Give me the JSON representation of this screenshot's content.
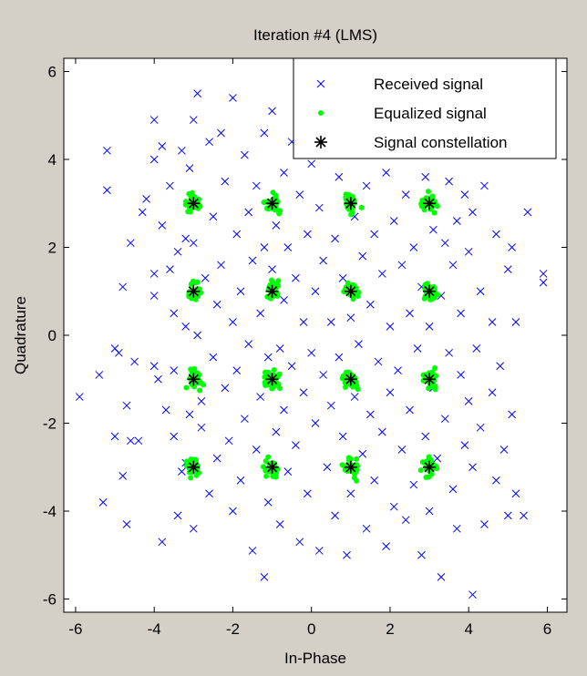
{
  "chart_data": {
    "type": "scatter",
    "title": "Iteration #4 (LMS)",
    "xlabel": "In-Phase",
    "ylabel": "Quadrature",
    "xlim": [
      -6.3,
      6.5
    ],
    "ylim": [
      -6.3,
      6.3
    ],
    "xticks": [
      -6,
      -4,
      -2,
      0,
      2,
      4,
      6
    ],
    "yticks": [
      -6,
      -4,
      -2,
      0,
      2,
      4,
      6
    ],
    "grid": false,
    "legend_position": "top-right",
    "colors": {
      "received": "#0000ff",
      "equalized": "#00ff00",
      "constellation": "#000000",
      "background": "#d4d0c8",
      "axes_bg": "#ffffff"
    },
    "series": [
      {
        "name": "Received signal",
        "marker": "x",
        "points": [
          [
            -5.9,
            -1.4
          ],
          [
            -5.4,
            -0.9
          ],
          [
            -5.3,
            -3.8
          ],
          [
            -5.2,
            3.3
          ],
          [
            -5.2,
            4.2
          ],
          [
            -5.0,
            -2.3
          ],
          [
            -5.0,
            -0.3
          ],
          [
            -4.9,
            -0.4
          ],
          [
            -4.8,
            -3.2
          ],
          [
            -4.8,
            1.1
          ],
          [
            -4.7,
            -1.6
          ],
          [
            -4.7,
            -4.3
          ],
          [
            -4.6,
            -2.4
          ],
          [
            -4.6,
            2.1
          ],
          [
            -4.5,
            -0.6
          ],
          [
            -4.4,
            -2.4
          ],
          [
            -4.3,
            2.8
          ],
          [
            -4.2,
            3.1
          ],
          [
            -4.0,
            4.0
          ],
          [
            -4.0,
            4.9
          ],
          [
            -4.0,
            -0.7
          ],
          [
            -4.0,
            1.4
          ],
          [
            -4.0,
            0.9
          ],
          [
            -3.9,
            -1.0
          ],
          [
            -3.8,
            -4.7
          ],
          [
            -3.8,
            4.3
          ],
          [
            -3.8,
            2.5
          ],
          [
            -3.7,
            -1.7
          ],
          [
            -3.6,
            1.5
          ],
          [
            -3.6,
            3.4
          ],
          [
            -3.5,
            -0.8
          ],
          [
            -3.5,
            -2.3
          ],
          [
            -3.5,
            0.5
          ],
          [
            -3.4,
            -4.1
          ],
          [
            -3.4,
            1.9
          ],
          [
            -3.3,
            4.2
          ],
          [
            -3.3,
            -3.1
          ],
          [
            -3.2,
            2.2
          ],
          [
            -3.2,
            0.2
          ],
          [
            -3.2,
            -2.9
          ],
          [
            -3.1,
            3.8
          ],
          [
            -3.1,
            -1.8
          ],
          [
            -3.0,
            2.1
          ],
          [
            -3.0,
            -4.4
          ],
          [
            -3.0,
            4.9
          ],
          [
            -2.9,
            5.5
          ],
          [
            -2.9,
            0.0
          ],
          [
            -2.8,
            -1.5
          ],
          [
            -2.8,
            -2.1
          ],
          [
            -2.7,
            1.3
          ],
          [
            -2.6,
            -3.6
          ],
          [
            -2.6,
            4.4
          ],
          [
            -2.5,
            2.7
          ],
          [
            -2.5,
            -0.5
          ],
          [
            -2.4,
            0.7
          ],
          [
            -2.4,
            -2.8
          ],
          [
            -2.3,
            4.6
          ],
          [
            -2.3,
            1.6
          ],
          [
            -2.2,
            -1.2
          ],
          [
            -2.2,
            3.5
          ],
          [
            -2.1,
            -2.4
          ],
          [
            -2.0,
            0.3
          ],
          [
            -2.0,
            -4.0
          ],
          [
            -2.0,
            5.4
          ],
          [
            -1.9,
            2.3
          ],
          [
            -1.9,
            -0.8
          ],
          [
            -1.8,
            1.0
          ],
          [
            -1.8,
            -3.3
          ],
          [
            -1.7,
            4.1
          ],
          [
            -1.7,
            -1.9
          ],
          [
            -1.6,
            2.8
          ],
          [
            -1.6,
            -0.2
          ],
          [
            -1.5,
            -4.9
          ],
          [
            -1.5,
            1.7
          ],
          [
            -1.4,
            -2.6
          ],
          [
            -1.4,
            3.4
          ],
          [
            -1.3,
            0.5
          ],
          [
            -1.3,
            -1.4
          ],
          [
            -1.2,
            -5.5
          ],
          [
            -1.2,
            4.6
          ],
          [
            -1.2,
            2.0
          ],
          [
            -1.1,
            -0.5
          ],
          [
            -1.1,
            -3.8
          ],
          [
            -1.0,
            5.1
          ],
          [
            -1.0,
            1.5
          ],
          [
            -0.9,
            -2.2
          ],
          [
            -0.9,
            2.5
          ],
          [
            -0.8,
            -0.3
          ],
          [
            -0.8,
            -4.3
          ],
          [
            -0.7,
            3.7
          ],
          [
            -0.7,
            0.8
          ],
          [
            -0.7,
            -1.7
          ],
          [
            -0.6,
            2.0
          ],
          [
            -0.6,
            -3.1
          ],
          [
            -0.5,
            4.4
          ],
          [
            -0.5,
            -0.7
          ],
          [
            -0.4,
            1.3
          ],
          [
            -0.4,
            -2.5
          ],
          [
            -0.3,
            3.2
          ],
          [
            -0.3,
            -4.7
          ],
          [
            -0.2,
            0.3
          ],
          [
            -0.2,
            -1.3
          ],
          [
            -0.1,
            2.3
          ],
          [
            -0.1,
            -3.6
          ],
          [
            0.0,
            3.9
          ],
          [
            0.0,
            -0.4
          ],
          [
            0.1,
            1.0
          ],
          [
            0.1,
            -2.0
          ],
          [
            0.2,
            -4.9
          ],
          [
            0.2,
            2.9
          ],
          [
            0.3,
            -0.9
          ],
          [
            0.3,
            1.7
          ],
          [
            0.4,
            -3.0
          ],
          [
            0.4,
            4.5
          ],
          [
            0.5,
            0.3
          ],
          [
            0.5,
            -1.6
          ],
          [
            0.6,
            2.2
          ],
          [
            0.6,
            -4.1
          ],
          [
            0.7,
            3.6
          ],
          [
            0.7,
            -0.5
          ],
          [
            0.8,
            1.3
          ],
          [
            0.8,
            -2.3
          ],
          [
            0.9,
            -5.0
          ],
          [
            0.9,
            4.1
          ],
          [
            1.0,
            0.4
          ],
          [
            1.0,
            -3.6
          ],
          [
            1.1,
            2.7
          ],
          [
            1.1,
            -1.4
          ],
          [
            1.2,
            4.9
          ],
          [
            1.2,
            -0.2
          ],
          [
            1.3,
            1.8
          ],
          [
            1.3,
            -2.7
          ],
          [
            1.4,
            -4.4
          ],
          [
            1.4,
            3.4
          ],
          [
            1.5,
            0.7
          ],
          [
            1.5,
            -1.8
          ],
          [
            1.6,
            2.3
          ],
          [
            1.6,
            -3.3
          ],
          [
            1.7,
            4.2
          ],
          [
            1.7,
            -0.6
          ],
          [
            1.8,
            1.4
          ],
          [
            1.8,
            -2.2
          ],
          [
            1.9,
            -4.8
          ],
          [
            1.9,
            3.7
          ],
          [
            2.0,
            0.2
          ],
          [
            2.0,
            -1.3
          ],
          [
            2.1,
            2.6
          ],
          [
            2.1,
            -3.9
          ],
          [
            2.2,
            4.6
          ],
          [
            2.2,
            -0.8
          ],
          [
            2.3,
            1.6
          ],
          [
            2.3,
            -2.6
          ],
          [
            2.4,
            -4.2
          ],
          [
            2.4,
            3.2
          ],
          [
            2.5,
            0.5
          ],
          [
            2.5,
            -1.7
          ],
          [
            2.6,
            2.0
          ],
          [
            2.6,
            -3.4
          ],
          [
            2.7,
            4.2
          ],
          [
            2.7,
            -0.3
          ],
          [
            2.8,
            1.1
          ],
          [
            2.8,
            -5.0
          ],
          [
            2.9,
            -2.3
          ],
          [
            2.9,
            3.6
          ],
          [
            3.0,
            0.2
          ],
          [
            3.0,
            -4.0
          ],
          [
            3.1,
            2.4
          ],
          [
            3.1,
            -1.2
          ],
          [
            3.2,
            4.4
          ],
          [
            3.2,
            -2.8
          ],
          [
            3.3,
            0.9
          ],
          [
            3.3,
            -5.5
          ],
          [
            3.4,
            2.1
          ],
          [
            3.4,
            -1.9
          ],
          [
            3.5,
            3.5
          ],
          [
            3.5,
            -0.4
          ],
          [
            3.6,
            1.6
          ],
          [
            3.6,
            -3.5
          ],
          [
            3.7,
            -4.4
          ],
          [
            3.7,
            2.6
          ],
          [
            3.8,
            -0.9
          ],
          [
            3.8,
            0.5
          ],
          [
            3.9,
            -2.5
          ],
          [
            3.9,
            3.2
          ],
          [
            4.0,
            -1.5
          ],
          [
            4.0,
            1.9
          ],
          [
            4.1,
            -3.0
          ],
          [
            4.1,
            2.8
          ],
          [
            4.1,
            -5.9
          ],
          [
            4.2,
            -0.3
          ],
          [
            4.3,
            1.0
          ],
          [
            4.3,
            -2.1
          ],
          [
            4.4,
            -4.3
          ],
          [
            4.4,
            3.4
          ],
          [
            4.6,
            0.3
          ],
          [
            4.6,
            -1.3
          ],
          [
            4.7,
            2.3
          ],
          [
            4.7,
            -3.3
          ],
          [
            4.8,
            -0.7
          ],
          [
            4.9,
            -2.6
          ],
          [
            5.0,
            1.5
          ],
          [
            5.0,
            -4.1
          ],
          [
            5.1,
            2.0
          ],
          [
            5.1,
            -1.8
          ],
          [
            5.2,
            0.3
          ],
          [
            5.2,
            -3.6
          ],
          [
            5.4,
            -4.1
          ],
          [
            5.5,
            2.8
          ],
          [
            5.9,
            1.4
          ],
          [
            5.9,
            1.2
          ]
        ]
      },
      {
        "name": "Equalized signal",
        "marker": "dot",
        "centers": [
          [
            -3,
            3
          ],
          [
            -1,
            3
          ],
          [
            1,
            3
          ],
          [
            3,
            3
          ],
          [
            -3,
            1
          ],
          [
            -1,
            1
          ],
          [
            1,
            1
          ],
          [
            3,
            1
          ],
          [
            -3,
            -1
          ],
          [
            -1,
            -1
          ],
          [
            1,
            -1
          ],
          [
            3,
            -1
          ],
          [
            -3,
            -3
          ],
          [
            -1,
            -3
          ],
          [
            1,
            -3
          ],
          [
            3,
            -3
          ]
        ],
        "spread": 0.28
      },
      {
        "name": "Signal constellation",
        "marker": "star",
        "points": [
          [
            -3,
            3
          ],
          [
            -1,
            3
          ],
          [
            1,
            3
          ],
          [
            3,
            3
          ],
          [
            -3,
            1
          ],
          [
            -1,
            1
          ],
          [
            1,
            1
          ],
          [
            3,
            1
          ],
          [
            -3,
            -1
          ],
          [
            -1,
            -1
          ],
          [
            1,
            -1
          ],
          [
            3,
            -1
          ],
          [
            -3,
            -3
          ],
          [
            -1,
            -3
          ],
          [
            1,
            -3
          ],
          [
            3,
            -3
          ]
        ]
      }
    ]
  }
}
